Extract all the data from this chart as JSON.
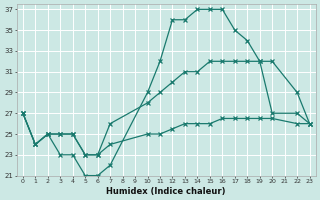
{
  "xlabel": "Humidex (Indice chaleur)",
  "bg_color": "#cce8e4",
  "grid_color": "#ffffff",
  "line_color": "#1a7a6e",
  "xlim": [
    -0.5,
    23.5
  ],
  "ylim": [
    21,
    37.5
  ],
  "yticks": [
    21,
    23,
    25,
    27,
    29,
    31,
    33,
    35,
    37
  ],
  "xticks": [
    0,
    1,
    2,
    3,
    4,
    5,
    6,
    7,
    8,
    9,
    10,
    11,
    12,
    13,
    14,
    15,
    16,
    17,
    18,
    19,
    20,
    21,
    22,
    23
  ],
  "series": [
    {
      "x": [
        0,
        1,
        2,
        3,
        4,
        5,
        6,
        7,
        10,
        11,
        12,
        13,
        14,
        15,
        16,
        17,
        18,
        19,
        20,
        22,
        23
      ],
      "y": [
        27,
        24,
        25,
        23,
        23,
        21,
        21,
        22,
        29,
        32,
        36,
        36,
        37,
        37,
        37,
        35,
        34,
        32,
        27,
        27,
        26
      ]
    },
    {
      "x": [
        0,
        1,
        2,
        3,
        4,
        5,
        6,
        7,
        10,
        11,
        12,
        13,
        14,
        15,
        16,
        17,
        18,
        19,
        20,
        22,
        23
      ],
      "y": [
        27,
        24,
        25,
        25,
        25,
        23,
        23,
        26,
        28,
        29,
        30,
        31,
        31,
        32,
        32,
        32,
        32,
        32,
        32,
        29,
        26
      ]
    },
    {
      "x": [
        0,
        1,
        2,
        3,
        4,
        5,
        6,
        7,
        10,
        11,
        12,
        13,
        14,
        15,
        16,
        17,
        18,
        19,
        20,
        22,
        23
      ],
      "y": [
        27,
        24,
        25,
        25,
        25,
        23,
        23,
        24,
        25,
        25,
        25.5,
        26,
        26,
        26,
        26.5,
        26.5,
        26.5,
        26.5,
        26.5,
        26,
        26
      ]
    }
  ]
}
